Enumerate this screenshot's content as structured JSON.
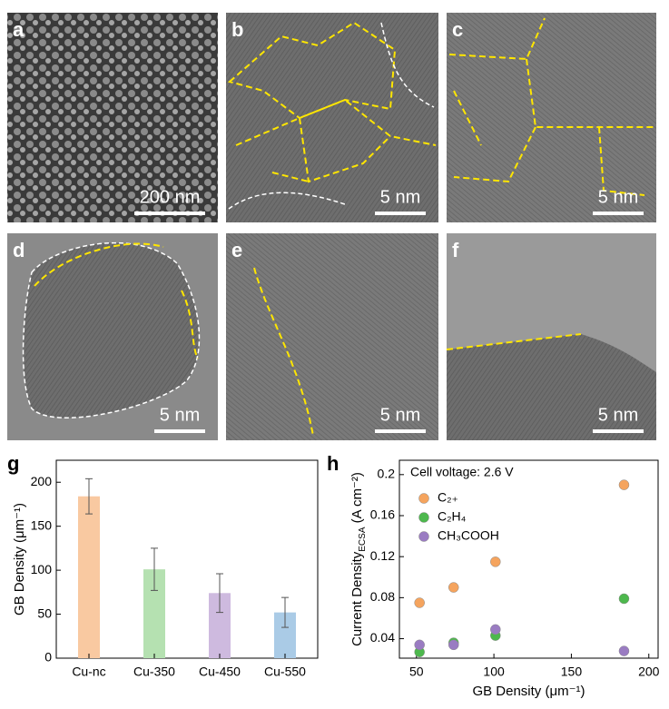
{
  "panels": [
    {
      "label": "a",
      "scale": "200 nm"
    },
    {
      "label": "b",
      "scale": "5 nm"
    },
    {
      "label": "c",
      "scale": "5 nm"
    },
    {
      "label": "d",
      "scale": "5 nm"
    },
    {
      "label": "e",
      "scale": "5 nm"
    },
    {
      "label": "f",
      "scale": "5 nm"
    }
  ],
  "chart_data": [
    {
      "type": "bar",
      "panel_label": "g",
      "categories": [
        "Cu-nc",
        "Cu-350",
        "Cu-450",
        "Cu-550"
      ],
      "values": [
        184,
        101,
        74,
        52
      ],
      "errors": [
        20,
        24,
        22,
        17
      ],
      "colors": [
        "#f9c9a1",
        "#b5e1b1",
        "#cebadf",
        "#aacbe6"
      ],
      "y_label": "GB Density (μm⁻¹)",
      "ylim": [
        0,
        225
      ],
      "yticks": [
        0,
        50,
        100,
        150,
        200
      ],
      "grid": false
    },
    {
      "type": "scatter",
      "panel_label": "h",
      "annotation": "Cell voltage: 2.6 V",
      "x_label": "GB Density (μm⁻¹)",
      "y_label": [
        "Current Density",
        "ECSA",
        " (A cm⁻²)"
      ],
      "series": [
        {
          "name": "C₂₊",
          "color": "#f5a45e",
          "x": [
            52,
            74,
            101,
            184
          ],
          "values": [
            0.075,
            0.09,
            0.115,
            0.19
          ]
        },
        {
          "name": "C₂H₄",
          "color": "#4db84d",
          "x": [
            52,
            74,
            101,
            184
          ],
          "values": [
            0.027,
            0.036,
            0.043,
            0.079
          ]
        },
        {
          "name": "CH₃COOH",
          "color": "#9a7cc2",
          "x": [
            52,
            74,
            101,
            184
          ],
          "values": [
            0.034,
            0.034,
            0.049,
            0.028
          ]
        }
      ],
      "xlim": [
        39,
        206
      ],
      "xticks": [
        50,
        100,
        150,
        200
      ],
      "ylim": [
        0.021,
        0.214
      ],
      "yticks": [
        0.04,
        0.08,
        0.12,
        0.16,
        0.2
      ],
      "legend": "upper-left",
      "grid": false
    }
  ]
}
